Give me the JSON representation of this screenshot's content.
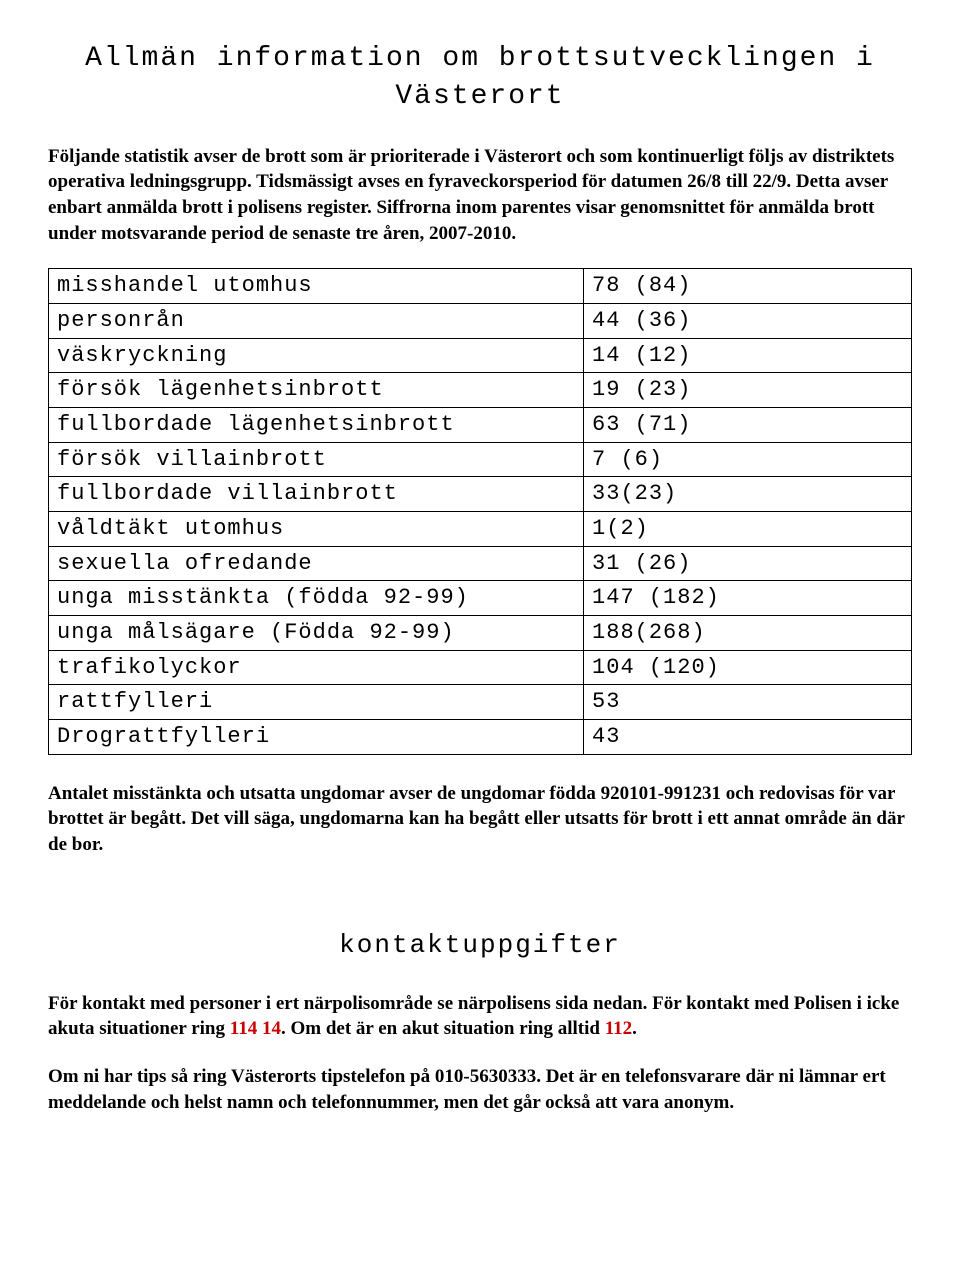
{
  "heading": "Allmän information om brottsutvecklingen i Västerort",
  "intro": "Följande statistik avser de brott som är prioriterade i Västerort och som kontinuerligt följs av distriktets operativa ledningsgrupp. Tidsmässigt avses en fyraveckorsperiod för datumen 26/8 till 22/9. Detta avser enbart anmälda brott i polisens register. Siffrorna inom parentes visar genomsnittet för anmälda brott under motsvarande period de senaste tre åren, 2007-2010.",
  "table": {
    "rows": [
      {
        "label": "misshandel utomhus",
        "value": "78 (84)"
      },
      {
        "label": "personrån",
        "value": "44 (36)"
      },
      {
        "label": "väskryckning",
        "value": "14 (12)"
      },
      {
        "label": "försök lägenhetsinbrott",
        "value": "19 (23)"
      },
      {
        "label": "fullbordade lägenhetsinbrott",
        "value": "63 (71)"
      },
      {
        "label": "försök villainbrott",
        "value": "7 (6)"
      },
      {
        "label": "fullbordade villainbrott",
        "value": "33(23)"
      },
      {
        "label": "våldtäkt utomhus",
        "value": "1(2)"
      },
      {
        "label": "sexuella ofredande",
        "value": "31 (26)"
      },
      {
        "label": "unga misstänkta (födda 92-99)",
        "value": "147 (182)"
      },
      {
        "label": "unga målsägare (Födda 92-99)",
        "value": "188(268)"
      },
      {
        "label": "trafikolyckor",
        "value": "104 (120)"
      },
      {
        "label": "rattfylleri",
        "value": "53"
      },
      {
        "label": "Drograttfylleri",
        "value": "43"
      }
    ]
  },
  "after_table": "Antalet misstänkta och utsatta ungdomar avser de ungdomar födda 920101-991231 och redovisas för var brottet är begått. Det vill säga, ungdomarna kan ha begått eller utsatts för brott i ett annat område än där de bor.",
  "subheading": "kontaktuppgifter",
  "contact1_a": "För kontakt med personer i ert närpolisområde se närpolisens sida nedan. För kontakt med Polisen i icke akuta situationer ring ",
  "contact1_b": "114 14",
  "contact1_c": ". Om det är en akut situation ring alltid ",
  "contact1_d": "112",
  "contact1_e": ".",
  "contact2": "Om ni har tips så ring Västerorts tipstelefon på 010-5630333. Det är en telefonsvarare där ni lämnar ert meddelande och helst namn och telefonnummer, men det går också att vara anonym."
}
